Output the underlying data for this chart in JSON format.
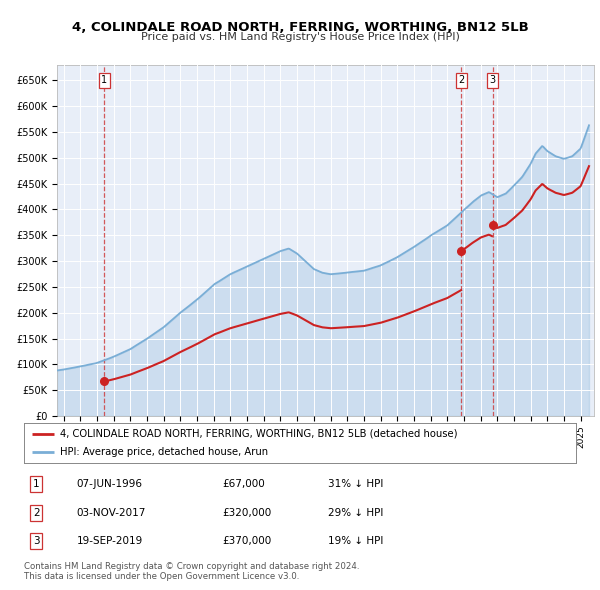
{
  "title": "4, COLINDALE ROAD NORTH, FERRING, WORTHING, BN12 5LB",
  "subtitle": "Price paid vs. HM Land Registry's House Price Index (HPI)",
  "ylim": [
    0,
    680000
  ],
  "yticks": [
    0,
    50000,
    100000,
    150000,
    200000,
    250000,
    300000,
    350000,
    400000,
    450000,
    500000,
    550000,
    600000,
    650000
  ],
  "ytick_labels": [
    "£0",
    "£50K",
    "£100K",
    "£150K",
    "£200K",
    "£250K",
    "£300K",
    "£350K",
    "£400K",
    "£450K",
    "£500K",
    "£550K",
    "£600K",
    "£650K"
  ],
  "xlim_start": 1993.6,
  "xlim_end": 2025.8,
  "sale_dates": [
    1996.44,
    2017.84,
    2019.72
  ],
  "sale_prices": [
    67000,
    320000,
    370000
  ],
  "sale_labels": [
    "1",
    "2",
    "3"
  ],
  "hpi_color": "#7aaed6",
  "price_color": "#cc2222",
  "vline_color": "#cc3333",
  "bg_color": "#e8eef8",
  "legend_label_price": "4, COLINDALE ROAD NORTH, FERRING, WORTHING, BN12 5LB (detached house)",
  "legend_label_hpi": "HPI: Average price, detached house, Arun",
  "table_data": [
    [
      "1",
      "07-JUN-1996",
      "£67,000",
      "31% ↓ HPI"
    ],
    [
      "2",
      "03-NOV-2017",
      "£320,000",
      "29% ↓ HPI"
    ],
    [
      "3",
      "19-SEP-2019",
      "£370,000",
      "19% ↓ HPI"
    ]
  ],
  "footer": "Contains HM Land Registry data © Crown copyright and database right 2024.\nThis data is licensed under the Open Government Licence v3.0.",
  "hpi_key_times": [
    1993.6,
    1994,
    1995,
    1996,
    1997,
    1998,
    1999,
    2000,
    2001,
    2002,
    2003,
    2004,
    2005,
    2006,
    2007,
    2007.5,
    2008,
    2008.5,
    2009,
    2009.5,
    2010,
    2011,
    2012,
    2013,
    2014,
    2015,
    2016,
    2017,
    2017.5,
    2018,
    2018.5,
    2019,
    2019.5,
    2020,
    2020.5,
    2021,
    2021.5,
    2022,
    2022.3,
    2022.7,
    2023,
    2023.5,
    2024,
    2024.5,
    2025,
    2025.5
  ],
  "hpi_key_vals": [
    88000,
    90000,
    96000,
    103000,
    115000,
    130000,
    150000,
    172000,
    200000,
    225000,
    255000,
    275000,
    290000,
    305000,
    320000,
    325000,
    315000,
    300000,
    285000,
    278000,
    275000,
    278000,
    282000,
    292000,
    308000,
    328000,
    350000,
    370000,
    385000,
    400000,
    415000,
    428000,
    435000,
    425000,
    432000,
    448000,
    465000,
    490000,
    510000,
    525000,
    515000,
    505000,
    500000,
    505000,
    520000,
    565000
  ]
}
